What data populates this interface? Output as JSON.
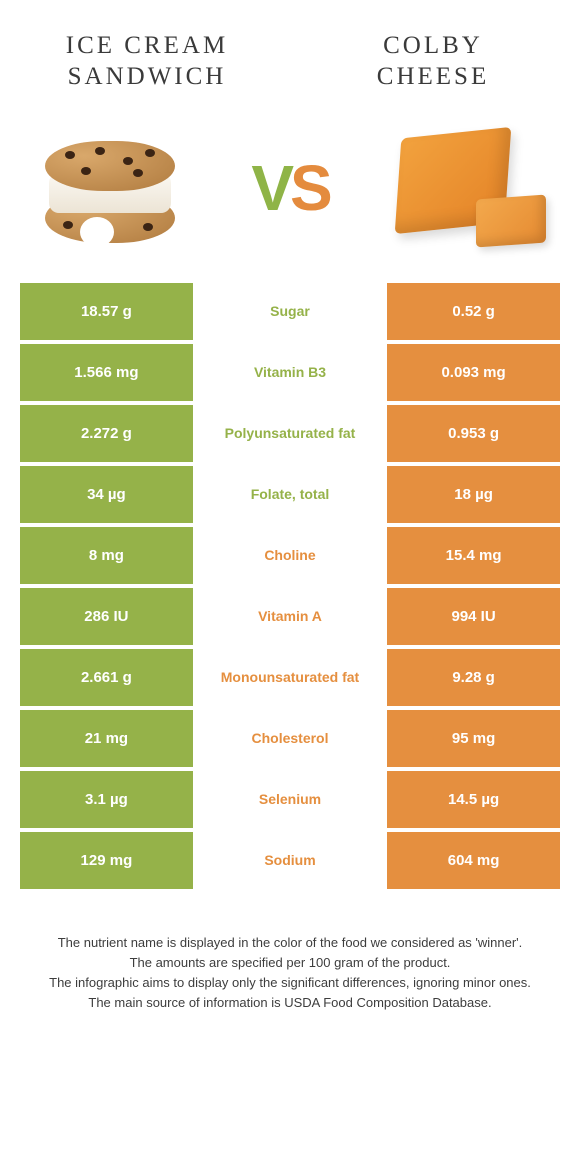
{
  "colors": {
    "green": "#95b249",
    "orange": "#e58f3f",
    "row_gap_bg": "#ffffff"
  },
  "header": {
    "left_title_line1": "ICE CREAM",
    "left_title_line2": "SANDWICH",
    "right_title_line1": "COLBY",
    "right_title_line2": "CHEESE",
    "vs_v": "V",
    "vs_s": "S"
  },
  "rows": [
    {
      "left": "18.57 g",
      "label": "Sugar",
      "right": "0.52 g",
      "winner": "left"
    },
    {
      "left": "1.566 mg",
      "label": "Vitamin B3",
      "right": "0.093 mg",
      "winner": "left"
    },
    {
      "left": "2.272 g",
      "label": "Polyunsaturated fat",
      "right": "0.953 g",
      "winner": "left"
    },
    {
      "left": "34 µg",
      "label": "Folate, total",
      "right": "18 µg",
      "winner": "left"
    },
    {
      "left": "8 mg",
      "label": "Choline",
      "right": "15.4 mg",
      "winner": "right"
    },
    {
      "left": "286 IU",
      "label": "Vitamin A",
      "right": "994 IU",
      "winner": "right"
    },
    {
      "left": "2.661 g",
      "label": "Monounsaturated fat",
      "right": "9.28 g",
      "winner": "right"
    },
    {
      "left": "21 mg",
      "label": "Cholesterol",
      "right": "95 mg",
      "winner": "right"
    },
    {
      "left": "3.1 µg",
      "label": "Selenium",
      "right": "14.5 µg",
      "winner": "right"
    },
    {
      "left": "129 mg",
      "label": "Sodium",
      "right": "604 mg",
      "winner": "right"
    }
  ],
  "footer": {
    "line1": "The nutrient name is displayed in the color of the food we considered as 'winner'.",
    "line2": "The amounts are specified per 100 gram of the product.",
    "line3": "The infographic aims to display only the significant differences, ignoring minor ones.",
    "line4": "The main source of information is USDA Food Composition Database."
  }
}
